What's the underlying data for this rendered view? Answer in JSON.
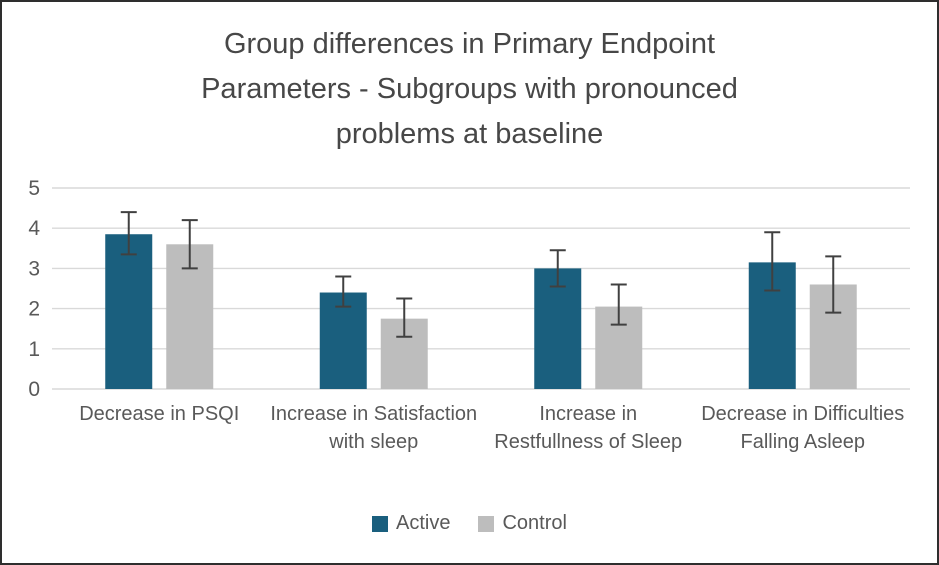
{
  "frame": {
    "background": "#ffffff",
    "border_color": "#2e2e2e"
  },
  "chart_data": {
    "type": "bar",
    "title": "Group differences in Primary Endpoint Parameters - Subgroups with pronounced problems at baseline",
    "categories": [
      "Decrease in PSQI",
      "Increase in Satisfaction with sleep",
      "Increase in Restfullness of Sleep",
      "Decrease in Difficulties Falling Asleep"
    ],
    "series": [
      {
        "name": "Active",
        "color": "#1A5F7E",
        "values": [
          3.85,
          2.4,
          3.0,
          3.15
        ],
        "error_low": [
          3.35,
          2.05,
          2.55,
          2.45
        ],
        "error_high": [
          4.4,
          2.8,
          3.45,
          3.9
        ]
      },
      {
        "name": "Control",
        "color": "#BDBDBD",
        "values": [
          3.6,
          1.75,
          2.05,
          2.6
        ],
        "error_low": [
          3.0,
          1.3,
          1.6,
          1.9
        ],
        "error_high": [
          4.2,
          2.25,
          2.6,
          3.3
        ]
      }
    ],
    "y_ticks": [
      "0",
      "1",
      "2",
      "3",
      "4",
      "5"
    ],
    "ylim": [
      0,
      5
    ],
    "xlabel": "",
    "ylabel": "",
    "grid": true,
    "legend_position": "bottom",
    "colors": {
      "gridline": "#D9D9D9",
      "error_bar": "#404040",
      "axis_text": "#595959",
      "title_text": "#474747"
    }
  }
}
